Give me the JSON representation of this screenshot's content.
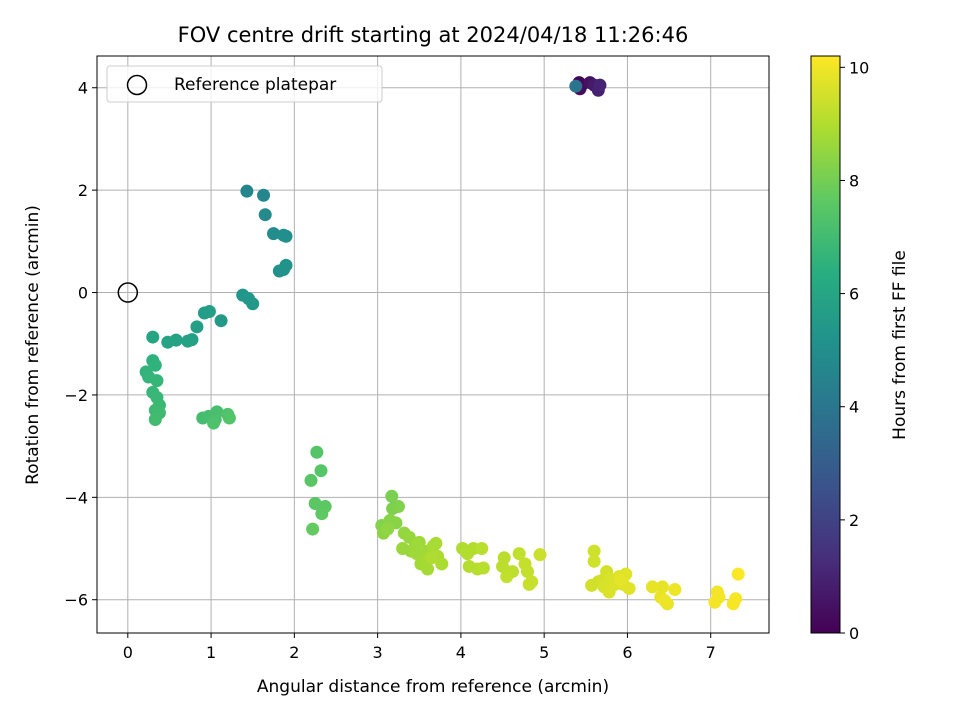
{
  "chart_data": {
    "type": "scatter",
    "title": "FOV centre drift starting at 2024/04/18 11:26:46",
    "xlabel": "Angular distance from reference (arcmin)",
    "ylabel": "Rotation from reference (arcmin)",
    "xlim": [
      -0.37,
      7.7
    ],
    "ylim": [
      -6.65,
      4.62
    ],
    "x_ticks": [
      0,
      1,
      2,
      3,
      4,
      5,
      6,
      7
    ],
    "y_ticks": [
      -6,
      -4,
      -2,
      0,
      2,
      4
    ],
    "grid": true,
    "legend": {
      "placement": "top-left",
      "entries": [
        "Reference platepar"
      ]
    },
    "colorbar": {
      "label": "Hours from first FF file",
      "range": [
        0,
        10.2
      ],
      "ticks": [
        0,
        2,
        4,
        6,
        8,
        10
      ],
      "colormap": "viridis"
    },
    "reference_point": {
      "x": 0,
      "y": 0
    },
    "points": [
      [
        5.42,
        4.1,
        0.1
      ],
      [
        5.45,
        4.05,
        0.2
      ],
      [
        5.43,
        3.98,
        0.3
      ],
      [
        5.55,
        4.1,
        0.5
      ],
      [
        5.6,
        4.05,
        0.7
      ],
      [
        5.65,
        3.95,
        0.9
      ],
      [
        5.67,
        4.05,
        1.0
      ],
      [
        5.38,
        4.03,
        3.9
      ],
      [
        1.43,
        1.98,
        4.6
      ],
      [
        1.63,
        1.9,
        4.7
      ],
      [
        1.65,
        1.52,
        4.8
      ],
      [
        1.75,
        1.15,
        4.9
      ],
      [
        1.87,
        1.12,
        5.0
      ],
      [
        1.9,
        1.1,
        5.05
      ],
      [
        1.82,
        0.42,
        5.1
      ],
      [
        1.87,
        0.45,
        5.15
      ],
      [
        1.9,
        0.53,
        5.2
      ],
      [
        1.38,
        -0.05,
        5.3
      ],
      [
        1.45,
        -0.12,
        5.35
      ],
      [
        1.5,
        -0.22,
        5.4
      ],
      [
        1.12,
        -0.55,
        5.5
      ],
      [
        0.92,
        -0.4,
        5.6
      ],
      [
        0.98,
        -0.37,
        5.65
      ],
      [
        0.83,
        -0.67,
        5.7
      ],
      [
        0.77,
        -0.92,
        5.75
      ],
      [
        0.72,
        -0.95,
        5.8
      ],
      [
        0.58,
        -0.93,
        5.85
      ],
      [
        0.48,
        -0.97,
        5.9
      ],
      [
        0.3,
        -0.87,
        6.0
      ],
      [
        0.3,
        -1.33,
        6.5
      ],
      [
        0.33,
        -1.42,
        6.55
      ],
      [
        0.22,
        -1.55,
        6.6
      ],
      [
        0.25,
        -1.65,
        6.65
      ],
      [
        0.35,
        -1.72,
        6.7
      ],
      [
        0.3,
        -1.95,
        6.75
      ],
      [
        0.35,
        -2.05,
        6.8
      ],
      [
        0.38,
        -2.2,
        6.85
      ],
      [
        0.33,
        -2.3,
        6.9
      ],
      [
        0.38,
        -2.35,
        6.95
      ],
      [
        0.33,
        -2.48,
        7.0
      ],
      [
        0.9,
        -2.45,
        7.05
      ],
      [
        0.97,
        -2.42,
        7.1
      ],
      [
        1.07,
        -2.33,
        7.15
      ],
      [
        1.05,
        -2.48,
        7.2
      ],
      [
        1.03,
        -2.55,
        7.25
      ],
      [
        1.2,
        -2.38,
        7.3
      ],
      [
        1.22,
        -2.45,
        7.35
      ],
      [
        2.27,
        -3.12,
        7.4
      ],
      [
        2.32,
        -3.48,
        7.45
      ],
      [
        2.2,
        -3.67,
        7.5
      ],
      [
        2.25,
        -4.12,
        7.55
      ],
      [
        2.37,
        -4.18,
        7.6
      ],
      [
        2.33,
        -4.32,
        7.65
      ],
      [
        2.22,
        -4.62,
        7.7
      ],
      [
        3.17,
        -3.98,
        8.1
      ],
      [
        3.18,
        -4.22,
        8.15
      ],
      [
        3.25,
        -4.18,
        8.2
      ],
      [
        3.05,
        -4.55,
        8.25
      ],
      [
        3.15,
        -4.45,
        8.3
      ],
      [
        3.22,
        -4.5,
        8.35
      ],
      [
        3.07,
        -4.7,
        8.4
      ],
      [
        3.12,
        -4.62,
        8.45
      ],
      [
        3.32,
        -4.7,
        8.5
      ],
      [
        3.38,
        -4.78,
        8.55
      ],
      [
        3.3,
        -5.0,
        8.6
      ],
      [
        3.4,
        -5.05,
        8.6
      ],
      [
        3.45,
        -4.95,
        8.65
      ],
      [
        3.5,
        -4.88,
        8.7
      ],
      [
        3.47,
        -5.1,
        8.7
      ],
      [
        3.52,
        -5.3,
        8.75
      ],
      [
        3.6,
        -5.05,
        8.75
      ],
      [
        3.57,
        -5.22,
        8.8
      ],
      [
        3.6,
        -5.4,
        8.8
      ],
      [
        3.67,
        -4.95,
        8.85
      ],
      [
        3.7,
        -4.9,
        8.85
      ],
      [
        3.72,
        -5.15,
        8.9
      ],
      [
        3.77,
        -5.3,
        8.9
      ],
      [
        3.65,
        -5.18,
        8.95
      ],
      [
        4.02,
        -5.0,
        8.95
      ],
      [
        4.08,
        -5.1,
        9.0
      ],
      [
        4.15,
        -5.0,
        9.0
      ],
      [
        4.1,
        -5.35,
        9.05
      ],
      [
        4.2,
        -5.4,
        9.05
      ],
      [
        4.27,
        -5.38,
        9.1
      ],
      [
        4.25,
        -5.0,
        9.1
      ],
      [
        4.5,
        -5.35,
        9.15
      ],
      [
        4.52,
        -5.18,
        9.15
      ],
      [
        4.57,
        -5.48,
        9.2
      ],
      [
        4.62,
        -5.45,
        9.2
      ],
      [
        4.55,
        -5.55,
        9.25
      ],
      [
        4.7,
        -5.1,
        9.25
      ],
      [
        4.77,
        -5.3,
        9.3
      ],
      [
        4.8,
        -5.45,
        9.3
      ],
      [
        4.82,
        -5.7,
        9.35
      ],
      [
        4.85,
        -5.65,
        9.35
      ],
      [
        4.95,
        -5.12,
        9.4
      ],
      [
        5.6,
        -5.05,
        9.45
      ],
      [
        5.6,
        -5.25,
        9.45
      ],
      [
        5.57,
        -5.72,
        9.5
      ],
      [
        5.65,
        -5.65,
        9.5
      ],
      [
        5.7,
        -5.62,
        9.55
      ],
      [
        5.75,
        -5.45,
        9.55
      ],
      [
        5.72,
        -5.75,
        9.6
      ],
      [
        5.8,
        -5.6,
        9.6
      ],
      [
        5.78,
        -5.85,
        9.65
      ],
      [
        5.85,
        -5.7,
        9.65
      ],
      [
        5.9,
        -5.55,
        9.7
      ],
      [
        5.95,
        -5.7,
        9.7
      ],
      [
        5.98,
        -5.5,
        9.75
      ],
      [
        6.02,
        -5.78,
        9.75
      ],
      [
        5.92,
        -5.62,
        9.8
      ],
      [
        6.3,
        -5.75,
        9.85
      ],
      [
        6.42,
        -5.75,
        9.85
      ],
      [
        6.4,
        -5.95,
        9.9
      ],
      [
        6.48,
        -6.08,
        9.9
      ],
      [
        6.45,
        -6.02,
        9.95
      ],
      [
        6.57,
        -5.8,
        9.95
      ],
      [
        7.08,
        -5.85,
        10.0
      ],
      [
        7.1,
        -5.95,
        10.05
      ],
      [
        7.05,
        -6.05,
        10.05
      ],
      [
        7.3,
        -5.98,
        10.1
      ],
      [
        7.27,
        -6.08,
        10.1
      ],
      [
        7.33,
        -5.5,
        10.15
      ]
    ]
  }
}
